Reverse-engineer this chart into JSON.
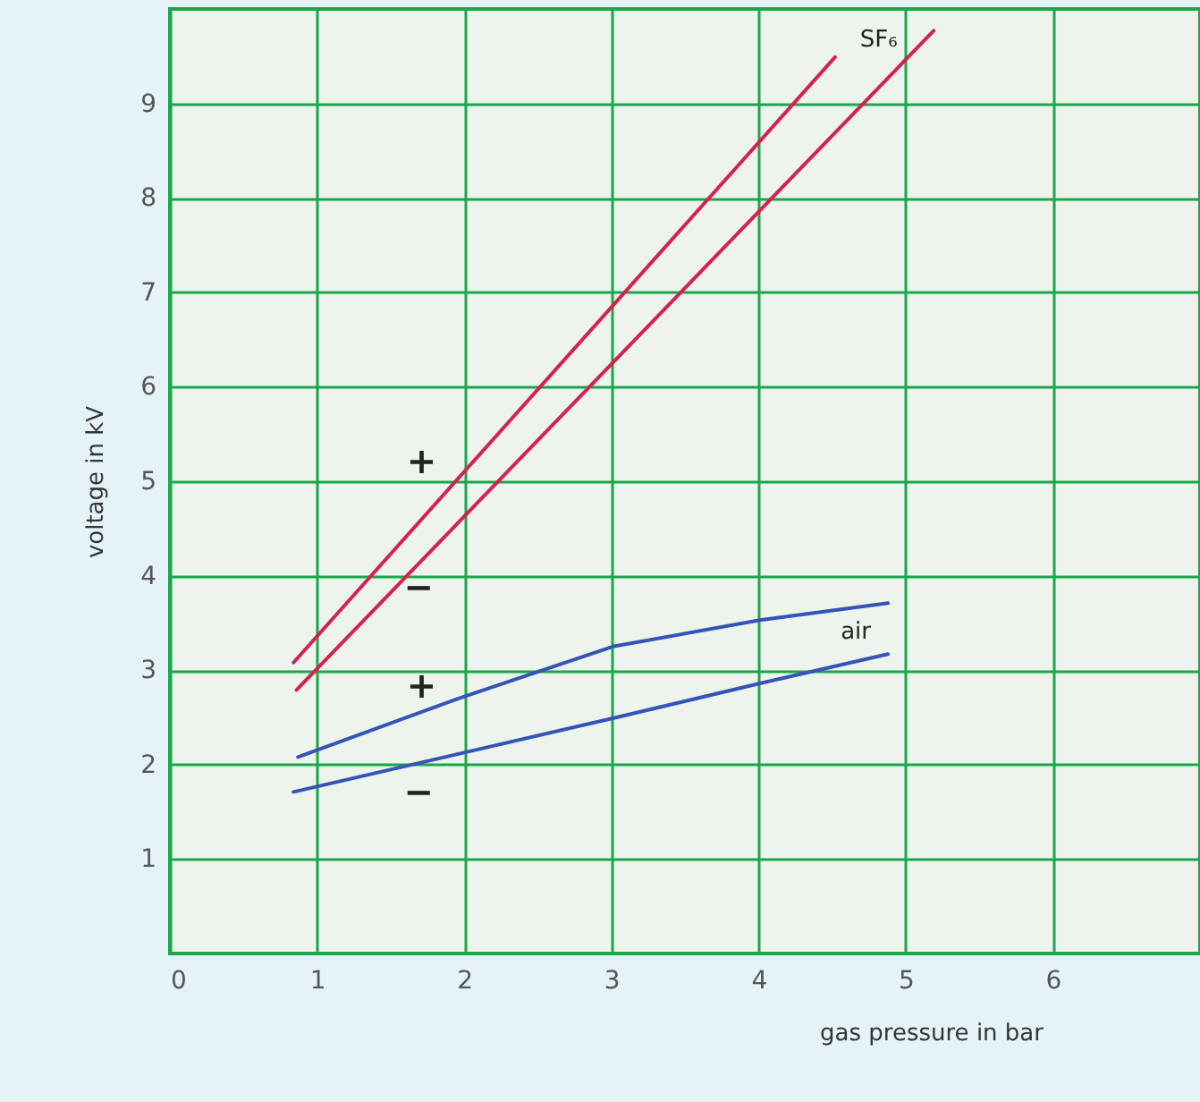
{
  "chart_data": {
    "type": "line",
    "xlabel": "gas pressure in bar",
    "ylabel": "voltage in kV",
    "xlim": [
      0,
      7
    ],
    "ylim": [
      0,
      10
    ],
    "xticks": [
      0,
      1,
      2,
      3,
      4,
      5,
      6
    ],
    "yticks": [
      1,
      2,
      3,
      4,
      5,
      6,
      7,
      8,
      9
    ],
    "grid": true,
    "series": [
      {
        "name": "SF₆",
        "color": "#d6204f",
        "x": [
          0.84,
          4.52
        ],
        "values": [
          3.08,
          9.49
        ]
      },
      {
        "color": "#d6204f",
        "x": [
          0.86,
          5.19
        ],
        "values": [
          2.79,
          9.77
        ]
      },
      {
        "name": "air",
        "color": "#3553b8",
        "x": [
          0.87,
          1.98,
          3.01,
          4.01,
          4.88
        ],
        "values": [
          2.08,
          2.71,
          3.25,
          3.53,
          3.71
        ]
      },
      {
        "color": "#3553b8",
        "x": [
          0.84,
          1.98,
          3.01,
          4.01,
          4.88
        ],
        "values": [
          1.71,
          2.12,
          2.49,
          2.86,
          3.17
        ]
      }
    ],
    "annotations": [
      "+",
      "−",
      "+",
      "−"
    ]
  }
}
